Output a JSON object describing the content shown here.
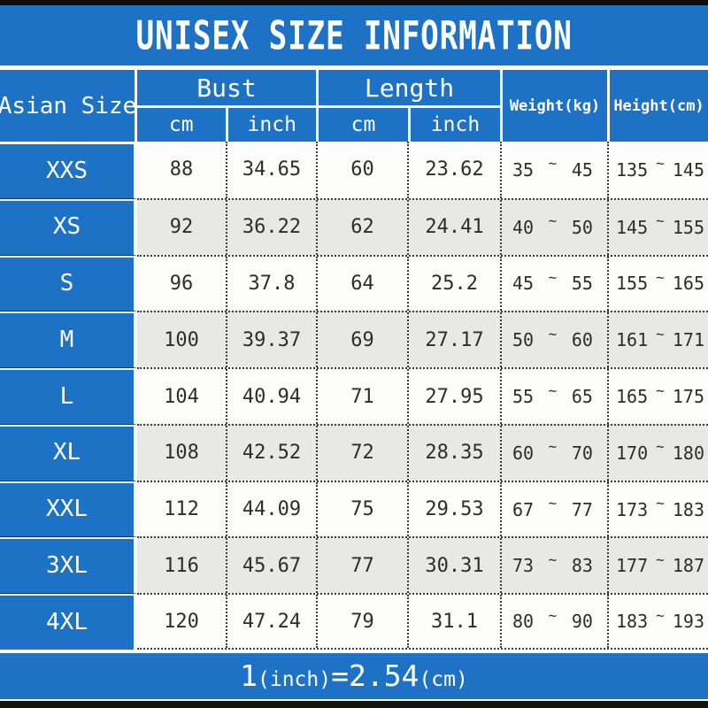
{
  "title": "UNISEX SIZE INFORMATION",
  "colors": {
    "background_blue": "#1e72c6",
    "row_alt_gray": "#e8e8e5",
    "row_white": "#fcfcfa",
    "top_bottom_bar": "#0d0d0d",
    "text_dark": "#2d2d2d",
    "text_white": "#ffffff"
  },
  "header": {
    "size_column": "Asian Size",
    "bust": "Bust",
    "length": "Length",
    "cm": "cm",
    "inch": "inch",
    "weight": "Weight(kg)",
    "height": "Height(cm)"
  },
  "tilde": "~",
  "rows": [
    {
      "size": "XXS",
      "bust_cm": "88",
      "bust_inch": "34.65",
      "length_cm": "60",
      "length_inch": "23.62",
      "weight_min": "35",
      "weight_max": "45",
      "height_min": "135",
      "height_max": "145"
    },
    {
      "size": "XS",
      "bust_cm": "92",
      "bust_inch": "36.22",
      "length_cm": "62",
      "length_inch": "24.41",
      "weight_min": "40",
      "weight_max": "50",
      "height_min": "145",
      "height_max": "155"
    },
    {
      "size": "S",
      "bust_cm": "96",
      "bust_inch": "37.8",
      "length_cm": "64",
      "length_inch": "25.2",
      "weight_min": "45",
      "weight_max": "55",
      "height_min": "155",
      "height_max": "165"
    },
    {
      "size": "M",
      "bust_cm": "100",
      "bust_inch": "39.37",
      "length_cm": "69",
      "length_inch": "27.17",
      "weight_min": "50",
      "weight_max": "60",
      "height_min": "161",
      "height_max": "171"
    },
    {
      "size": "L",
      "bust_cm": "104",
      "bust_inch": "40.94",
      "length_cm": "71",
      "length_inch": "27.95",
      "weight_min": "55",
      "weight_max": "65",
      "height_min": "165",
      "height_max": "175"
    },
    {
      "size": "XL",
      "bust_cm": "108",
      "bust_inch": "42.52",
      "length_cm": "72",
      "length_inch": "28.35",
      "weight_min": "60",
      "weight_max": "70",
      "height_min": "170",
      "height_max": "180"
    },
    {
      "size": "XXL",
      "bust_cm": "112",
      "bust_inch": "44.09",
      "length_cm": "75",
      "length_inch": "29.53",
      "weight_min": "67",
      "weight_max": "77",
      "height_min": "173",
      "height_max": "183"
    },
    {
      "size": "3XL",
      "bust_cm": "116",
      "bust_inch": "45.67",
      "length_cm": "77",
      "length_inch": "30.31",
      "weight_min": "73",
      "weight_max": "83",
      "height_min": "177",
      "height_max": "187"
    },
    {
      "size": "4XL",
      "bust_cm": "120",
      "bust_inch": "47.24",
      "length_cm": "79",
      "length_inch": "31.1",
      "weight_min": "80",
      "weight_max": "90",
      "height_min": "183",
      "height_max": "193"
    }
  ],
  "footer": {
    "parts": [
      "1",
      "(inch)",
      "=2.54",
      "(cm)"
    ]
  },
  "chart_data": {
    "type": "table",
    "title": "UNISEX SIZE INFORMATION",
    "columns": [
      "Asian Size",
      "Bust cm",
      "Bust inch",
      "Length cm",
      "Length inch",
      "Weight(kg)",
      "Height(cm)"
    ],
    "rows": [
      [
        "XXS",
        "88",
        "34.65",
        "60",
        "23.62",
        "35~45",
        "135~145"
      ],
      [
        "XS",
        "92",
        "36.22",
        "62",
        "24.41",
        "40~50",
        "145~155"
      ],
      [
        "S",
        "96",
        "37.8",
        "64",
        "25.2",
        "45~55",
        "155~165"
      ],
      [
        "M",
        "100",
        "39.37",
        "69",
        "27.17",
        "50~60",
        "161~171"
      ],
      [
        "L",
        "104",
        "40.94",
        "71",
        "27.95",
        "55~65",
        "165~175"
      ],
      [
        "XL",
        "108",
        "42.52",
        "72",
        "28.35",
        "60~70",
        "170~180"
      ],
      [
        "XXL",
        "112",
        "44.09",
        "75",
        "29.53",
        "67~77",
        "173~183"
      ],
      [
        "3XL",
        "116",
        "45.67",
        "77",
        "30.31",
        "73~83",
        "177~187"
      ],
      [
        "4XL",
        "120",
        "47.24",
        "79",
        "31.1",
        "80~90",
        "183~193"
      ]
    ],
    "note": "1(inch)=2.54(cm)"
  }
}
